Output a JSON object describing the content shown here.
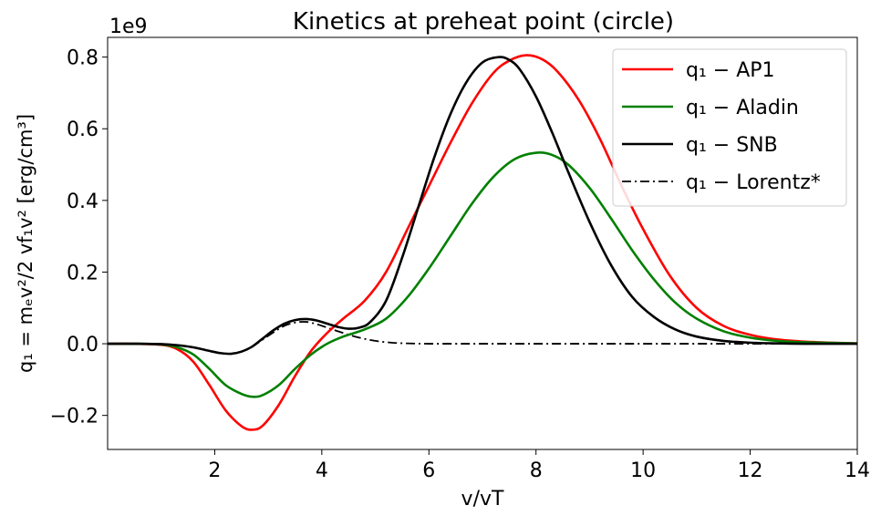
{
  "chart_data": {
    "type": "line",
    "title": "Kinetics at preheat point (circle)",
    "xlabel": "v/vT",
    "ylabel": "q₁ = mₑv²/2 vf₁v² [erg/cm³]",
    "y_offset_label": "1e9",
    "xlim": [
      0,
      14
    ],
    "ylim": [
      -0.295,
      0.855
    ],
    "y_scale_note": "values in units of 1e9",
    "x_ticks": [
      2,
      4,
      6,
      8,
      10,
      12,
      14
    ],
    "x_tick_labels": [
      "2",
      "4",
      "6",
      "8",
      "10",
      "12",
      "14"
    ],
    "y_ticks": [
      -0.2,
      0.0,
      0.2,
      0.4,
      0.6,
      0.8
    ],
    "y_tick_labels": [
      "−0.2",
      "0.0",
      "0.2",
      "0.4",
      "0.6",
      "0.8"
    ],
    "grid": false,
    "legend_position": "top-right",
    "series": [
      {
        "name": "q₁ − AP1",
        "legend_label": "q₁ − AP1",
        "color": "#ff0000",
        "style": "solid",
        "x": [
          0.0,
          0.5,
          1.0,
          1.3,
          1.6,
          1.9,
          2.2,
          2.5,
          2.7,
          2.9,
          3.2,
          3.5,
          3.8,
          4.1,
          4.4,
          4.8,
          5.2,
          5.6,
          6.0,
          6.4,
          6.8,
          7.2,
          7.5,
          7.8,
          8.1,
          8.4,
          8.8,
          9.2,
          9.6,
          10.0,
          10.5,
          11.0,
          11.5,
          12.0,
          12.5,
          13.0,
          13.5,
          14.0
        ],
        "y": [
          0.0,
          0.0,
          -0.003,
          -0.015,
          -0.05,
          -0.115,
          -0.185,
          -0.23,
          -0.24,
          -0.228,
          -0.17,
          -0.09,
          -0.02,
          0.03,
          0.07,
          0.12,
          0.2,
          0.32,
          0.44,
          0.56,
          0.67,
          0.755,
          0.79,
          0.805,
          0.795,
          0.76,
          0.68,
          0.57,
          0.44,
          0.32,
          0.19,
          0.1,
          0.05,
          0.025,
          0.012,
          0.006,
          0.003,
          0.001
        ]
      },
      {
        "name": "q₁ − Aladin",
        "legend_label": "q₁ − Aladin",
        "color": "#008000",
        "style": "solid",
        "x": [
          0.0,
          0.5,
          1.0,
          1.3,
          1.6,
          1.9,
          2.2,
          2.5,
          2.7,
          2.9,
          3.2,
          3.5,
          3.8,
          4.1,
          4.4,
          4.8,
          5.2,
          5.6,
          6.0,
          6.4,
          6.8,
          7.2,
          7.6,
          8.0,
          8.3,
          8.6,
          9.0,
          9.4,
          9.8,
          10.2,
          10.6,
          11.0,
          11.5,
          12.0,
          12.5,
          13.0,
          14.0
        ],
        "y": [
          0.0,
          0.0,
          -0.002,
          -0.01,
          -0.03,
          -0.07,
          -0.115,
          -0.14,
          -0.148,
          -0.143,
          -0.115,
          -0.07,
          -0.03,
          0.0,
          0.02,
          0.04,
          0.07,
          0.13,
          0.21,
          0.3,
          0.39,
          0.465,
          0.515,
          0.533,
          0.527,
          0.5,
          0.435,
          0.35,
          0.26,
          0.18,
          0.115,
          0.07,
          0.035,
          0.017,
          0.008,
          0.004,
          0.001
        ]
      },
      {
        "name": "q₁ − SNB",
        "legend_label": "q₁ − SNB",
        "color": "#000000",
        "style": "solid",
        "x": [
          0.0,
          0.5,
          1.0,
          1.3,
          1.6,
          1.9,
          2.1,
          2.3,
          2.5,
          2.7,
          2.9,
          3.1,
          3.3,
          3.5,
          3.7,
          3.9,
          4.1,
          4.3,
          4.5,
          4.7,
          4.9,
          5.2,
          5.5,
          5.8,
          6.1,
          6.4,
          6.7,
          7.0,
          7.3,
          7.5,
          7.7,
          8.0,
          8.3,
          8.6,
          9.0,
          9.4,
          9.8,
          10.2,
          10.6,
          11.0,
          11.5,
          12.0,
          12.5,
          13.0,
          14.0
        ],
        "y": [
          0.0,
          0.0,
          -0.001,
          -0.004,
          -0.01,
          -0.02,
          -0.026,
          -0.028,
          -0.022,
          -0.008,
          0.015,
          0.038,
          0.056,
          0.066,
          0.069,
          0.065,
          0.056,
          0.047,
          0.042,
          0.045,
          0.06,
          0.12,
          0.24,
          0.38,
          0.52,
          0.64,
          0.73,
          0.785,
          0.8,
          0.792,
          0.765,
          0.69,
          0.59,
          0.48,
          0.34,
          0.22,
          0.13,
          0.075,
          0.04,
          0.02,
          0.008,
          0.003,
          0.001,
          0.0,
          0.0
        ]
      },
      {
        "name": "q₁ − Lorentz*",
        "legend_label": "q₁ − Lorentz*",
        "color": "#000000",
        "style": "dashdot",
        "x": [
          0.0,
          0.5,
          1.0,
          1.3,
          1.6,
          1.9,
          2.1,
          2.3,
          2.5,
          2.7,
          2.9,
          3.1,
          3.3,
          3.5,
          3.7,
          3.9,
          4.1,
          4.4,
          4.7,
          5.0,
          5.3,
          5.6,
          6.0,
          6.5,
          7.0,
          8.0,
          10.0,
          12.0,
          14.0
        ],
        "y": [
          0.0,
          0.0,
          -0.001,
          -0.004,
          -0.01,
          -0.02,
          -0.026,
          -0.028,
          -0.022,
          -0.008,
          0.012,
          0.032,
          0.05,
          0.059,
          0.061,
          0.055,
          0.045,
          0.03,
          0.017,
          0.008,
          0.003,
          0.001,
          0.0,
          0.0,
          0.0,
          0.0,
          0.0,
          0.0,
          0.0
        ]
      }
    ]
  }
}
